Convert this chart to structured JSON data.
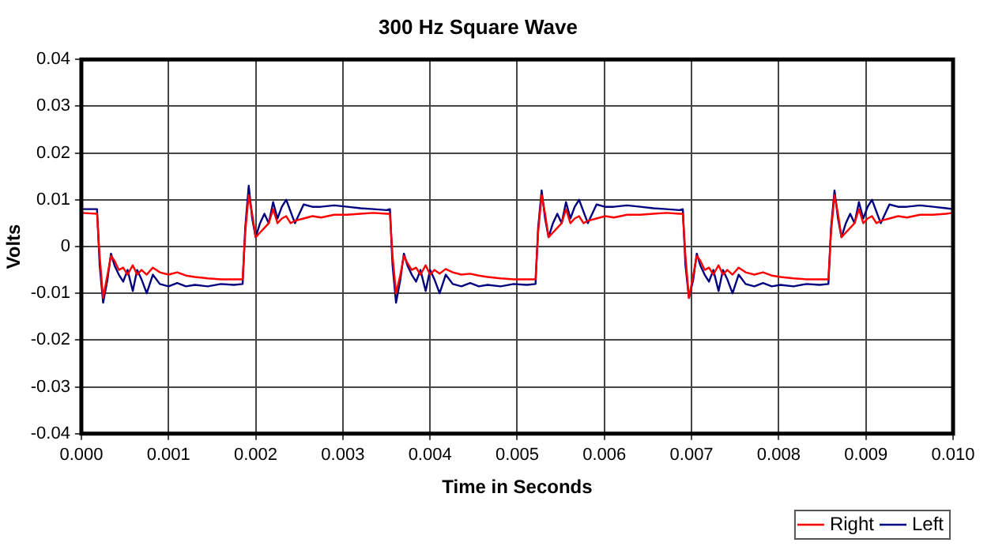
{
  "chart_data": {
    "type": "line",
    "title": "300 Hz Square Wave",
    "xlabel": "Time in Seconds",
    "ylabel": "Volts",
    "x": [
      0,
      0.00018,
      0.00021,
      0.00025,
      0.0003,
      0.00034,
      0.00038,
      0.00043,
      0.00048,
      0.00053,
      0.00059,
      0.00064,
      0.00069,
      0.00075,
      0.00082,
      0.0009,
      0.001,
      0.0011,
      0.0012,
      0.0013,
      0.00145,
      0.0016,
      0.00175,
      0.00185,
      0.00188,
      0.00192,
      0.00196,
      0.002,
      0.00205,
      0.0021,
      0.00215,
      0.0022,
      0.00225,
      0.0023,
      0.00235,
      0.0024,
      0.00245,
      0.00255,
      0.00265,
      0.00275,
      0.0029,
      0.00305,
      0.0032,
      0.00335,
      0.0035,
      0.00354,
      0.00357,
      0.00361,
      0.00366,
      0.0037,
      0.00374,
      0.00379,
      0.00384,
      0.00389,
      0.00395,
      0.004,
      0.00405,
      0.00411,
      0.00418,
      0.00426,
      0.00436,
      0.00446,
      0.00456,
      0.00466,
      0.00481,
      0.00496,
      0.00511,
      0.00521,
      0.00524,
      0.00528,
      0.00532,
      0.00536,
      0.00541,
      0.00546,
      0.00551,
      0.00556,
      0.00561,
      0.00566,
      0.00571,
      0.00576,
      0.00581,
      0.00591,
      0.00601,
      0.00611,
      0.00626,
      0.00641,
      0.00656,
      0.00671,
      0.00686,
      0.0069,
      0.00693,
      0.00697,
      0.00702,
      0.00706,
      0.0071,
      0.00715,
      0.0072,
      0.00725,
      0.00731,
      0.00736,
      0.00741,
      0.00747,
      0.00754,
      0.00762,
      0.00772,
      0.00782,
      0.00792,
      0.00802,
      0.00817,
      0.00832,
      0.00847,
      0.00857,
      0.0086,
      0.00864,
      0.00868,
      0.00872,
      0.00877,
      0.00882,
      0.00887,
      0.00892,
      0.00897,
      0.00902,
      0.00907,
      0.00912,
      0.00917,
      0.00927,
      0.00937,
      0.00947,
      0.00962,
      0.00977,
      0.00992,
      0.01
    ],
    "series": [
      {
        "name": "Right",
        "color": "#ff0000",
        "values": [
          0.0072,
          0.007,
          -0.002,
          -0.011,
          -0.006,
          -0.002,
          -0.003,
          -0.005,
          -0.0045,
          -0.006,
          -0.004,
          -0.006,
          -0.005,
          -0.006,
          -0.0045,
          -0.0055,
          -0.006,
          -0.0055,
          -0.0062,
          -0.0065,
          -0.0068,
          -0.007,
          -0.007,
          -0.007,
          0.003,
          0.011,
          0.007,
          0.002,
          0.003,
          0.004,
          0.005,
          0.008,
          0.005,
          0.006,
          0.0065,
          0.005,
          0.0055,
          0.006,
          0.0065,
          0.0062,
          0.0068,
          0.0068,
          0.007,
          0.0072,
          0.007,
          0.007,
          -0.002,
          -0.01,
          -0.006,
          -0.002,
          -0.0035,
          -0.005,
          -0.0045,
          -0.006,
          -0.004,
          -0.006,
          -0.005,
          -0.0058,
          -0.0048,
          -0.0055,
          -0.006,
          -0.0058,
          -0.0062,
          -0.0065,
          -0.0068,
          -0.007,
          -0.007,
          -0.007,
          0.003,
          0.011,
          0.007,
          0.002,
          0.003,
          0.004,
          0.005,
          0.008,
          0.005,
          0.006,
          0.0065,
          0.005,
          0.0055,
          0.006,
          0.0065,
          0.0062,
          0.0068,
          0.0068,
          0.007,
          0.0072,
          0.007,
          0.007,
          -0.002,
          -0.011,
          -0.006,
          -0.002,
          -0.003,
          -0.005,
          -0.0045,
          -0.006,
          -0.004,
          -0.006,
          -0.005,
          -0.006,
          -0.0045,
          -0.0055,
          -0.006,
          -0.0055,
          -0.0062,
          -0.0065,
          -0.0068,
          -0.007,
          -0.007,
          -0.007,
          0.003,
          0.011,
          0.007,
          0.002,
          0.003,
          0.004,
          0.005,
          0.008,
          0.005,
          0.006,
          0.0065,
          0.005,
          0.0055,
          0.006,
          0.0065,
          0.0062,
          0.0068,
          0.0068,
          0.007,
          0.0072
        ]
      },
      {
        "name": "Left",
        "color": "#000080",
        "values": [
          0.008,
          0.008,
          -0.004,
          -0.012,
          -0.007,
          -0.0015,
          -0.004,
          -0.006,
          -0.0075,
          -0.005,
          -0.0095,
          -0.005,
          -0.007,
          -0.01,
          -0.006,
          -0.008,
          -0.0085,
          -0.0078,
          -0.0085,
          -0.0082,
          -0.0085,
          -0.008,
          -0.0082,
          -0.008,
          0.004,
          0.013,
          0.006,
          0.002,
          0.005,
          0.007,
          0.005,
          0.0095,
          0.006,
          0.0085,
          0.01,
          0.0075,
          0.005,
          0.009,
          0.0085,
          0.0085,
          0.0088,
          0.0085,
          0.0082,
          0.008,
          0.0078,
          0.008,
          -0.004,
          -0.012,
          -0.007,
          -0.0015,
          -0.004,
          -0.006,
          -0.0075,
          -0.005,
          -0.0095,
          -0.005,
          -0.007,
          -0.01,
          -0.006,
          -0.008,
          -0.0085,
          -0.0078,
          -0.0085,
          -0.0082,
          -0.0085,
          -0.008,
          -0.0082,
          -0.008,
          0.004,
          0.012,
          0.006,
          0.002,
          0.005,
          0.007,
          0.005,
          0.0095,
          0.006,
          0.0085,
          0.01,
          0.0075,
          0.005,
          0.009,
          0.0085,
          0.0085,
          0.0088,
          0.0085,
          0.0082,
          0.008,
          0.0078,
          0.008,
          -0.004,
          -0.011,
          -0.007,
          -0.0015,
          -0.004,
          -0.006,
          -0.0075,
          -0.005,
          -0.0095,
          -0.005,
          -0.007,
          -0.01,
          -0.006,
          -0.008,
          -0.0085,
          -0.0078,
          -0.0085,
          -0.0082,
          -0.0085,
          -0.008,
          -0.0082,
          -0.008,
          0.004,
          0.012,
          0.006,
          0.002,
          0.005,
          0.007,
          0.005,
          0.0095,
          0.006,
          0.0085,
          0.01,
          0.0075,
          0.005,
          0.009,
          0.0085,
          0.0085,
          0.0088,
          0.0085,
          0.0082,
          0.008
        ]
      }
    ],
    "xlim": [
      0,
      0.01
    ],
    "xticks": [
      {
        "value": 0,
        "label": "0.000"
      },
      {
        "value": 0.001,
        "label": "0.001"
      },
      {
        "value": 0.002,
        "label": "0.002"
      },
      {
        "value": 0.003,
        "label": "0.003"
      },
      {
        "value": 0.004,
        "label": "0.004"
      },
      {
        "value": 0.005,
        "label": "0.005"
      },
      {
        "value": 0.006,
        "label": "0.006"
      },
      {
        "value": 0.007,
        "label": "0.007"
      },
      {
        "value": 0.008,
        "label": "0.008"
      },
      {
        "value": 0.009,
        "label": "0.009"
      },
      {
        "value": 0.01,
        "label": "0.010"
      }
    ],
    "ylim": [
      -0.04,
      0.04
    ],
    "yticks": [
      -0.04,
      -0.03,
      -0.02,
      -0.01,
      0,
      0.01,
      0.02,
      0.03,
      0.04
    ],
    "grid": true,
    "legend": "bottom right",
    "marker": "none",
    "line_style": "solid"
  }
}
